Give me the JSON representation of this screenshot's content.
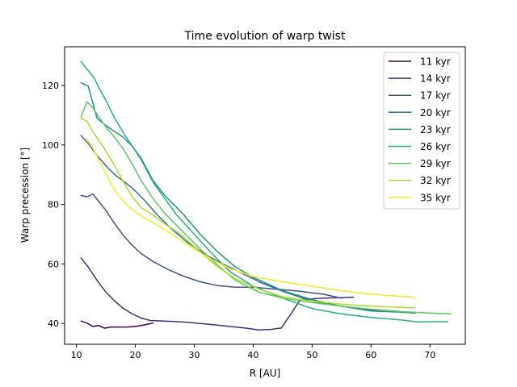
{
  "chart_data": {
    "type": "line",
    "title": "Time evolution of warp twist",
    "xlabel": "R [AU]",
    "ylabel": "Warp precession [°]",
    "xlim": [
      8.0,
      76.0
    ],
    "ylim": [
      33.0,
      133.0
    ],
    "xticks": [
      10,
      20,
      30,
      40,
      50,
      60,
      70
    ],
    "yticks": [
      40,
      60,
      80,
      100,
      120
    ],
    "grid": false,
    "legend_position": "top-right",
    "series": [
      {
        "name": "11 kyr",
        "color": "#440154",
        "x": [
          10.8,
          11.8,
          12.8,
          13.8,
          14.8,
          15.8,
          16.8,
          18.5,
          20.0,
          21.5,
          23.0
        ],
        "y": [
          40.8,
          40.1,
          39.0,
          39.3,
          38.4,
          38.8,
          38.8,
          38.8,
          39.0,
          39.5,
          40.1
        ]
      },
      {
        "name": "14 kyr",
        "color": "#472d7b",
        "x": [
          10.8,
          12.0,
          13.5,
          15.0,
          16.5,
          18.0,
          19.5,
          21.0,
          22.5,
          25.0,
          28.0,
          32.0,
          36.0,
          38.5,
          41.0,
          43.0,
          44.8,
          46.5,
          48.0,
          52.0,
          57.0
        ],
        "y": [
          62.0,
          59.0,
          54.5,
          50.5,
          47.5,
          45.0,
          43.2,
          41.8,
          41.0,
          40.8,
          40.5,
          39.8,
          39.0,
          38.5,
          37.8,
          38.0,
          38.5,
          43.5,
          48.0,
          48.5,
          48.8
        ]
      },
      {
        "name": "17 kyr",
        "color": "#3b528b",
        "x": [
          10.8,
          11.8,
          12.8,
          13.8,
          15.0,
          16.5,
          18.0,
          19.5,
          21.0,
          23.0,
          25.5,
          28.0,
          31.0,
          34.0,
          37.0,
          40.0,
          44.0,
          48.0,
          52.0,
          55.0
        ],
        "y": [
          83.0,
          82.6,
          83.5,
          81.0,
          78.0,
          73.5,
          69.5,
          66.2,
          63.5,
          60.8,
          58.2,
          56.0,
          54.0,
          52.7,
          52.2,
          52.2,
          51.5,
          50.8,
          49.8,
          48.5
        ]
      },
      {
        "name": "20 kyr",
        "color": "#2c728e",
        "x": [
          10.8,
          12.0,
          13.5,
          15.0,
          16.5,
          18.0,
          19.5,
          21.5,
          23.5,
          26.0,
          29.0,
          32.0,
          35.0,
          38.0,
          41.0,
          45.0,
          50.0,
          55.0,
          60.0,
          62.0
        ],
        "y": [
          103.2,
          100.5,
          96.5,
          93.0,
          90.0,
          87.8,
          85.5,
          81.5,
          77.0,
          72.0,
          67.0,
          63.0,
          59.8,
          57.0,
          54.0,
          50.8,
          47.5,
          45.8,
          44.5,
          44.0
        ]
      },
      {
        "name": "23 kyr",
        "color": "#21918c",
        "x": [
          10.8,
          12.0,
          13.5,
          15.0,
          16.5,
          18.0,
          19.5,
          21.0,
          23.0,
          25.0,
          28.0,
          31.0,
          34.0,
          37.0,
          40.0,
          45.0,
          50.0,
          55.0,
          60.0,
          65.0,
          67.5
        ],
        "y": [
          120.8,
          119.8,
          109.0,
          106.5,
          104.5,
          102.5,
          99.5,
          95.5,
          88.0,
          83.0,
          77.0,
          70.0,
          64.0,
          59.0,
          55.5,
          51.0,
          48.0,
          45.8,
          44.2,
          43.8,
          43.5
        ]
      },
      {
        "name": "26 kyr",
        "color": "#28ae80",
        "x": [
          10.8,
          12.0,
          13.0,
          14.0,
          15.0,
          16.5,
          18.0,
          19.5,
          21.0,
          23.0,
          25.0,
          27.0,
          30.0,
          33.0,
          36.0,
          40.0,
          45.0,
          50.0,
          55.0,
          60.0,
          65.0,
          68.0,
          73.0
        ],
        "y": [
          128.0,
          125.0,
          122.5,
          118.5,
          115.0,
          109.0,
          104.0,
          99.5,
          95.0,
          87.5,
          82.0,
          76.5,
          70.0,
          63.5,
          57.5,
          52.5,
          48.5,
          45.0,
          43.2,
          42.0,
          41.2,
          40.5,
          40.6
        ]
      },
      {
        "name": "29 kyr",
        "color": "#5ec962",
        "x": [
          10.8,
          11.8,
          12.8,
          13.8,
          15.0,
          16.5,
          18.0,
          19.5,
          21.0,
          23.0,
          25.0,
          28.0,
          31.0,
          34.0,
          37.0,
          41.0,
          45.0,
          50.0,
          55.0,
          60.0,
          65.0,
          70.0,
          73.5
        ],
        "y": [
          109.5,
          114.5,
          112.5,
          109.5,
          106.0,
          102.5,
          98.5,
          93.5,
          88.0,
          82.0,
          77.0,
          71.0,
          65.0,
          59.5,
          54.5,
          50.5,
          48.5,
          47.0,
          45.8,
          44.8,
          44.0,
          43.5,
          43.2
        ]
      },
      {
        "name": "32 kyr",
        "color": "#addc30",
        "x": [
          10.8,
          11.8,
          12.8,
          13.8,
          15.0,
          16.5,
          18.0,
          19.5,
          21.0,
          23.0,
          25.0,
          28.0,
          31.0,
          34.0,
          37.0,
          41.0,
          45.0,
          50.0,
          55.0,
          60.0,
          67.5
        ],
        "y": [
          109.0,
          108.0,
          104.5,
          101.5,
          98.0,
          93.0,
          87.5,
          82.5,
          79.0,
          76.5,
          73.5,
          69.5,
          64.0,
          59.0,
          55.0,
          51.5,
          49.0,
          47.5,
          46.5,
          45.8,
          45.2
        ]
      },
      {
        "name": "35 kyr",
        "color": "#fde725",
        "x": [
          11.8,
          12.8,
          13.8,
          15.0,
          16.0,
          17.0,
          18.5,
          20.0,
          22.0,
          24.0,
          27.0,
          30.0,
          33.0,
          36.0,
          40.0,
          45.0,
          50.0,
          55.0,
          60.0,
          67.5
        ],
        "y": [
          102.0,
          99.0,
          95.0,
          90.5,
          86.5,
          83.5,
          80.0,
          77.5,
          75.0,
          72.8,
          69.0,
          65.0,
          61.5,
          58.5,
          55.8,
          54.0,
          52.5,
          51.0,
          49.8,
          48.8
        ]
      }
    ]
  }
}
